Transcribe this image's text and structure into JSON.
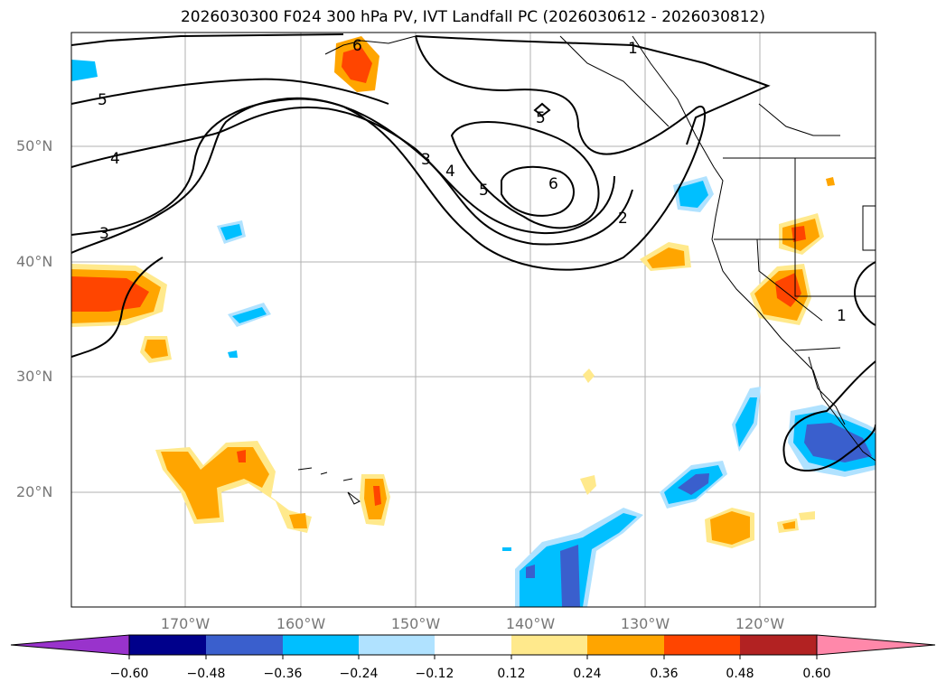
{
  "title": "2026030300 F024 300 hPa PV, IVT Landfall PC (2026030612 - 2026030812)",
  "map": {
    "lat_labels": [
      "50°N",
      "40°N",
      "30°N",
      "20°N"
    ],
    "lon_labels": [
      "170°W",
      "160°W",
      "150°W",
      "140°W",
      "130°W",
      "120°W"
    ],
    "contour_labels": [
      "1",
      "2",
      "3",
      "4",
      "5",
      "6",
      "5",
      "3",
      "4",
      "5",
      "6",
      "1"
    ]
  },
  "colorbar": {
    "ticks": [
      "−0.60",
      "−0.48",
      "−0.36",
      "−0.24",
      "−0.12",
      "0.12",
      "0.24",
      "0.36",
      "0.48",
      "0.60"
    ],
    "colors": [
      "#9933cc",
      "#00008b",
      "#3a5fcd",
      "#00bfff",
      "#b0e2ff",
      "#ffffff",
      "#ffe98c",
      "#ffa500",
      "#ff4500",
      "#b22222",
      "#ff88aa"
    ]
  }
}
